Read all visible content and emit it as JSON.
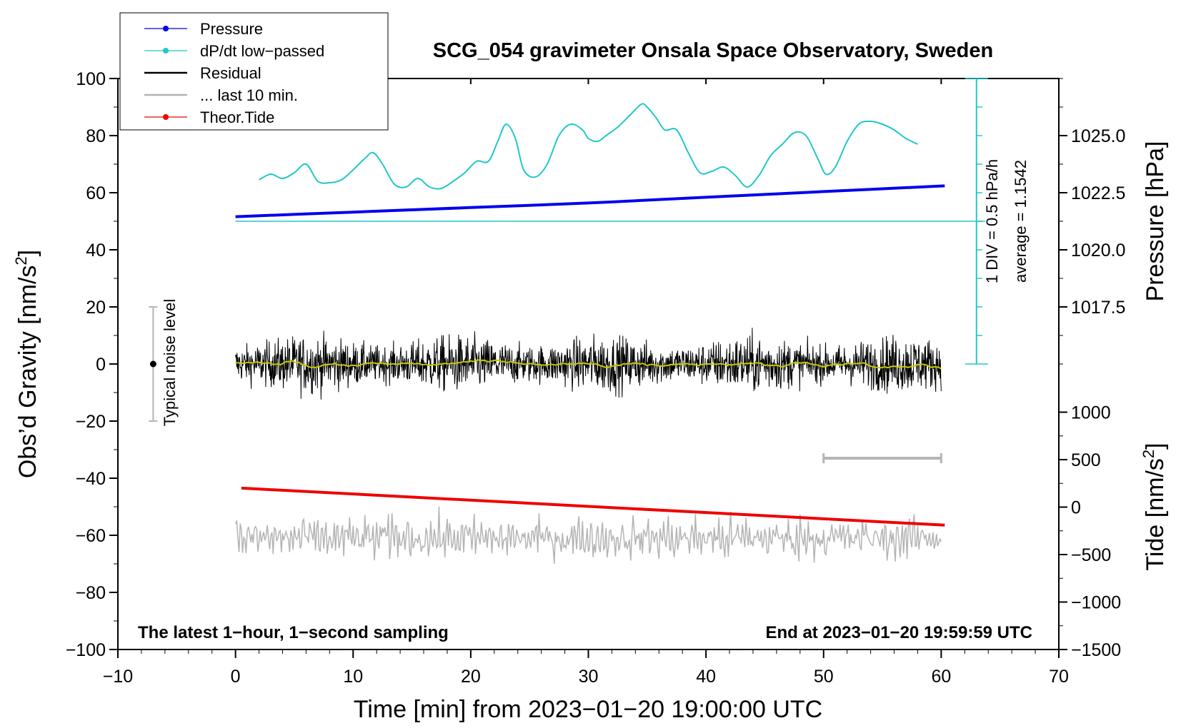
{
  "chart_data": {
    "type": "line",
    "title": "SCG_054 gravimeter Onsala Space Observatory, Sweden",
    "xlabel": "Time [min] from 2023−01−20 19:00:00 UTC",
    "ylabel_prefix": "Obs’d Gravity [nm/s",
    "ylabel_sup": "2",
    "ylabel_suffix": "]",
    "ylabel_right_pressure": "Pressure [hPa]",
    "ylabel_right_tide_prefix": "Tide [nm/s",
    "ylabel_right_tide_sup": "2",
    "ylabel_right_tide_suffix": "]",
    "xlim": [
      -10,
      70
    ],
    "ylim": [
      -100,
      100
    ],
    "pressure_lim": [
      1015.0,
      1027.5
    ],
    "tide_lim": [
      -1500,
      1500
    ],
    "x_ticks": [
      "−10",
      "0",
      "10",
      "20",
      "30",
      "40",
      "50",
      "60",
      "70"
    ],
    "y_ticks": [
      "−100",
      "−80",
      "−60",
      "−40",
      "−20",
      "0",
      "20",
      "40",
      "60",
      "80",
      "100"
    ],
    "pressure_ticks": [
      "1017.5",
      "1020.0",
      "1022.5",
      "1025.0"
    ],
    "tide_ticks": [
      "−1500",
      "−1000",
      "−500",
      "0",
      "500",
      "1000"
    ],
    "legend": [
      {
        "label": "Pressure",
        "color": "#0000ee",
        "marker": true
      },
      {
        "label": "dP/dt low−passed",
        "color": "#20c8c8",
        "marker": true
      },
      {
        "label": "Residual",
        "color": "#000000",
        "marker": false
      },
      {
        "label": "... last 10 min.",
        "color": "#b4b4b4",
        "marker": false
      },
      {
        "label": "Theor.Tide",
        "color": "#ee0000",
        "marker": true
      }
    ],
    "annotations": {
      "noise_label": "Typical noise level",
      "div_label": "1 DIV = 0.5 hPa/h",
      "average_label": "average = 1.1542",
      "bottom_left": "The latest 1−hour, 1−second sampling",
      "bottom_right": "End at 2023−01−20 19:59:59 UTC"
    },
    "noise_bar": {
      "x": -7,
      "y": 0,
      "low": -20,
      "high": 20
    },
    "last10_bar": {
      "x_start": 50,
      "x_end": 60,
      "y": -33
    },
    "dpdt_baseline_y": 50,
    "dpdt_scale": {
      "x": 63,
      "y_bottom": 0,
      "y_top": 100,
      "ticks": 10
    },
    "series": [
      {
        "name": "Pressure",
        "axis": "pressure",
        "color": "#0000ee",
        "x": [
          0,
          10,
          20,
          30,
          40,
          50,
          60.3
        ],
        "values": [
          1021.45,
          1021.65,
          1021.85,
          1022.05,
          1022.3,
          1022.55,
          1022.8
        ]
      },
      {
        "name": "dP/dt low-passed",
        "axis": "left",
        "color": "#20c8c8",
        "x": [
          2,
          3,
          4,
          5,
          6,
          7,
          8,
          9,
          10,
          11,
          11.7,
          12.5,
          13.5,
          14.5,
          15.5,
          16.5,
          17.5,
          18.5,
          19.5,
          20.5,
          21.5,
          22.3,
          23,
          23.8,
          24.5,
          25.5,
          26.5,
          27.5,
          28.5,
          29.5,
          30,
          30.8,
          31.5,
          32.5,
          33.5,
          34.5,
          35,
          35.8,
          36.5,
          37.5,
          38.5,
          39.5,
          40.5,
          41.5,
          42.5,
          43.5,
          44.5,
          45.5,
          46.5,
          47.5,
          48.5,
          49.5,
          50.2,
          51,
          52,
          53,
          54,
          55,
          56,
          57,
          58
        ],
        "values": [
          64.5,
          66.5,
          65,
          67,
          70,
          64,
          63.5,
          64.5,
          68,
          72,
          74,
          70,
          63,
          62,
          65,
          62,
          61.5,
          64,
          67,
          71,
          71,
          78,
          84,
          79,
          68,
          65.5,
          70,
          80,
          84,
          82,
          79,
          78,
          80,
          83,
          87,
          91,
          90,
          86,
          82,
          82,
          74,
          67,
          67.5,
          69,
          66,
          62,
          66,
          73,
          77,
          81,
          80,
          72,
          66.5,
          69,
          78,
          84,
          85,
          84,
          82,
          79,
          77
        ]
      },
      {
        "name": "Residual",
        "axis": "left",
        "color": "#000000",
        "x": [
          0,
          60
        ],
        "mean": 0,
        "amplitude": 6,
        "note": "1-second sampled noise around 0 nm/s2 with yellow-green smoothed trace"
      },
      {
        "name": "... last 10 min.",
        "axis": "left",
        "color": "#b4b4b4",
        "x": [
          0,
          60
        ],
        "mean": -61,
        "amplitude": 6,
        "note": "Last 10 minutes of residual, stretched over the hour window and offset"
      },
      {
        "name": "Theor.Tide",
        "axis": "tide",
        "color": "#ee0000",
        "x": [
          0.5,
          60.3
        ],
        "values": [
          200,
          -190
        ]
      }
    ]
  }
}
